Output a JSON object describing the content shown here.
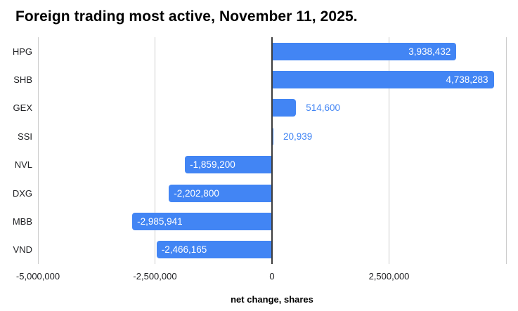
{
  "title": "Foreign trading most active, November 11, 2025.",
  "colors": {
    "bar": "#4285f4",
    "label_inside": "#ffffff",
    "label_outside": "#4285f4",
    "gridline": "#cccccc",
    "zero_axis": "#3c3c3c",
    "text": "#202124",
    "title_text": "#000000"
  },
  "chart_data": {
    "type": "bar",
    "orientation": "horizontal",
    "title": "Foreign trading most active, November 11, 2025.",
    "xlabel": "net change, shares",
    "ylabel": "",
    "xlim": [
      -5000000,
      5000000
    ],
    "grid": true,
    "legend": "none",
    "categories": [
      "HPG",
      "SHB",
      "GEX",
      "SSI",
      "NVL",
      "DXG",
      "MBB",
      "VND"
    ],
    "values": [
      3938432,
      4738283,
      514600,
      20939,
      -1859200,
      -2202800,
      -2985941,
      -2466165
    ],
    "value_labels": [
      "3,938,432",
      "4,738,283",
      "514,600",
      "20,939",
      "-1,859,200",
      "-2,202,800",
      "-2,985,941",
      "-2,466,165"
    ],
    "gridline_values": [
      -5000000,
      -2500000,
      0,
      2500000,
      5000000
    ],
    "x_ticks": [
      -5000000,
      -2500000,
      0,
      2500000
    ],
    "x_tick_labels": [
      "-5,000,000",
      "-2,500,000",
      "0",
      "2,500,000"
    ]
  }
}
